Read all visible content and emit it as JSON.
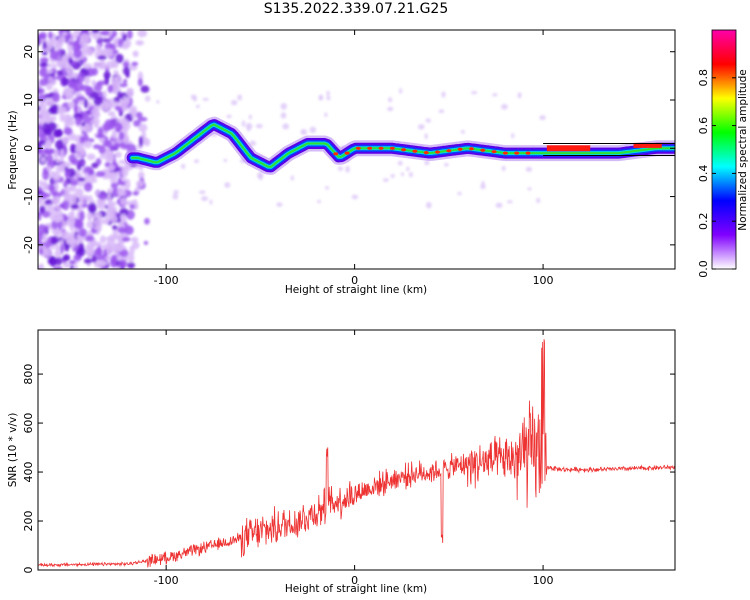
{
  "title": "S135.2022.339.07.21.G25",
  "chart_data": [
    {
      "type": "heatmap",
      "xlabel": "Height of straight line (km)",
      "ylabel": "Frequency (Hz)",
      "xlim": [
        -168,
        170
      ],
      "ylim": [
        -25,
        24.5
      ],
      "x_ticks": [
        -100,
        0,
        100
      ],
      "y_ticks": [
        -20,
        -10,
        0,
        10,
        20
      ],
      "colorbar": {
        "label": "Normalized spectral amplitude",
        "range": [
          0,
          1
        ],
        "ticks": [
          "0.0",
          "0.2",
          "0.4",
          "0.6",
          "0.8"
        ],
        "colormap": [
          "#ff00aa",
          "#ff0000",
          "#ffff00",
          "#00ff00",
          "#00ffff",
          "#0000ff",
          "#8000ff",
          "#ffffff"
        ]
      },
      "ridge": {
        "x": [
          -115,
          -105,
          -95,
          -85,
          -75,
          -65,
          -55,
          -45,
          -35,
          -25,
          -15,
          -8,
          0,
          20,
          40,
          60,
          80,
          90,
          100,
          120,
          140,
          160,
          170
        ],
        "y": [
          -2,
          -3,
          -1,
          2,
          5,
          3,
          -2,
          -4,
          -1,
          1,
          1,
          -2,
          0,
          0,
          -1,
          0,
          -1,
          -1,
          -1,
          -1,
          -1,
          0,
          0
        ]
      }
    },
    {
      "type": "line",
      "xlabel": "Height of straight line (km)",
      "ylabel": "SNR (10 * v/v)",
      "xlim": [
        -168,
        170
      ],
      "ylim": [
        0,
        980
      ],
      "x_ticks": [
        -100,
        0,
        100
      ],
      "y_ticks": [
        0,
        200,
        400,
        600,
        800
      ],
      "color": "#ee3333",
      "envelope": {
        "x": [
          -168,
          -120,
          -100,
          -80,
          -60,
          -40,
          -30,
          -20,
          -10,
          0,
          10,
          20,
          30,
          40,
          50,
          60,
          70,
          80,
          90,
          95,
          100,
          102,
          110,
          130,
          150,
          170
        ],
        "y": [
          20,
          25,
          50,
          90,
          130,
          180,
          200,
          240,
          280,
          310,
          340,
          370,
          390,
          400,
          420,
          430,
          440,
          450,
          460,
          480,
          470,
          420,
          410,
          410,
          415,
          420
        ]
      }
    }
  ]
}
